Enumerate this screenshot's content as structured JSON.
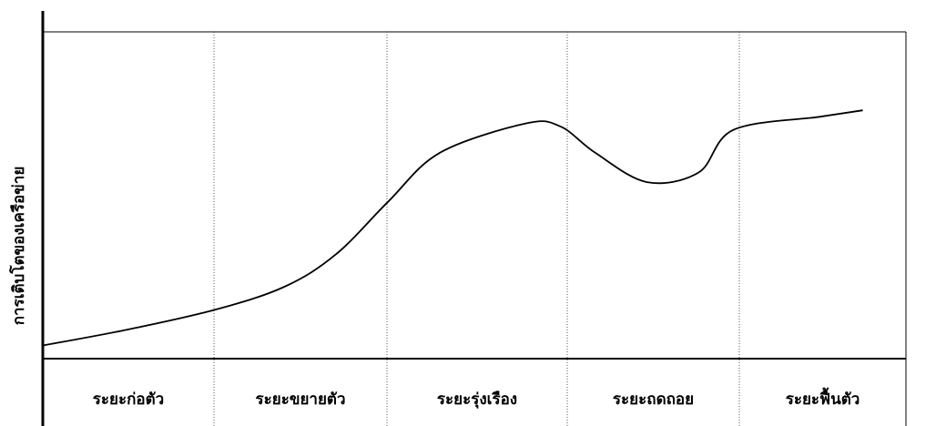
{
  "chart_data": {
    "type": "line",
    "title": "",
    "xlabel": "",
    "ylabel": "การเติบโตของเครือข่าย",
    "categories": [
      "ระยะก่อตัว",
      "ระยะขยายตัว",
      "ระยะรุ่งเรือง",
      "ระยะถดถอย",
      "ระยะฟื้นตัว"
    ],
    "grid": "vertical dotted separators between stages",
    "series": [
      {
        "x": [
          0.0,
          0.5,
          1.0,
          1.4,
          1.7,
          2.0,
          2.3,
          2.8,
          3.0,
          3.2,
          3.5,
          3.8,
          4.0,
          4.5,
          4.75
        ],
        "y": [
          0.04,
          0.09,
          0.15,
          0.22,
          0.32,
          0.48,
          0.63,
          0.72,
          0.71,
          0.63,
          0.54,
          0.57,
          0.7,
          0.74,
          0.76
        ]
      }
    ],
    "xlim": [
      0,
      5
    ],
    "ylim": [
      0,
      1
    ],
    "colors": {
      "line": "#000000",
      "axis": "#000000",
      "separator": "#555555",
      "background": "#ffffff"
    }
  }
}
